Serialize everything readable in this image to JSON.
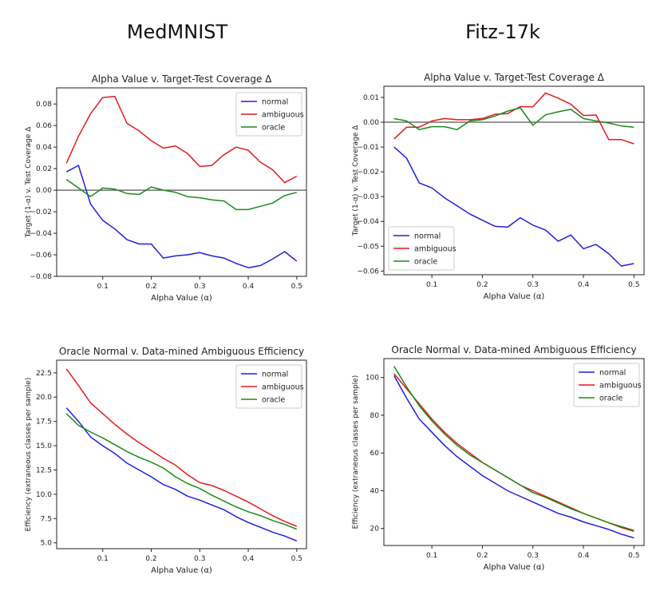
{
  "titles": {
    "left": "MedMNIST",
    "right": "Fitz-17k"
  },
  "colors": {
    "normal": "#1f1fe0",
    "ambiguous": "#e41a1c",
    "oracle": "#1a8a1a",
    "zero_line": "#555555"
  },
  "chart_data": [
    {
      "type": "line",
      "title": "Alpha Value v. Target-Test Coverage Δ",
      "xlabel": "Alpha Value (α)",
      "ylabel": "Target (1-α) v. Test Coverage Δ",
      "xlim": [
        0.005,
        0.52
      ],
      "ylim": [
        -0.08,
        0.095
      ],
      "xticks": [
        0.1,
        0.2,
        0.3,
        0.4,
        0.5
      ],
      "xtick_labels": [
        "0.1",
        "0.2",
        "0.3",
        "0.4",
        "0.5"
      ],
      "yticks": [
        -0.08,
        -0.06,
        -0.04,
        -0.02,
        0.0,
        0.02,
        0.04,
        0.06,
        0.08
      ],
      "ytick_labels": [
        "−0.08",
        "−0.06",
        "−0.04",
        "−0.02",
        "0.00",
        "0.02",
        "0.04",
        "0.06",
        "0.08"
      ],
      "hline": 0,
      "legend": "top-right",
      "x": [
        0.025,
        0.05,
        0.075,
        0.1,
        0.125,
        0.15,
        0.175,
        0.2,
        0.225,
        0.25,
        0.275,
        0.3,
        0.325,
        0.35,
        0.375,
        0.4,
        0.425,
        0.45,
        0.475,
        0.5
      ],
      "series": [
        {
          "name": "normal",
          "key": "normal",
          "values": [
            0.017,
            0.023,
            -0.013,
            -0.028,
            -0.036,
            -0.046,
            -0.05,
            -0.05,
            -0.063,
            -0.061,
            -0.06,
            -0.058,
            -0.061,
            -0.063,
            -0.068,
            -0.072,
            -0.07,
            -0.064,
            -0.057,
            -0.066
          ]
        },
        {
          "name": "ambiguous",
          "key": "ambiguous",
          "values": [
            0.025,
            0.05,
            0.071,
            0.086,
            0.087,
            0.062,
            0.055,
            0.046,
            0.039,
            0.041,
            0.034,
            0.022,
            0.023,
            0.033,
            0.04,
            0.037,
            0.026,
            0.019,
            0.007,
            0.013
          ]
        },
        {
          "name": "oracle",
          "key": "oracle",
          "values": [
            0.01,
            0.002,
            -0.006,
            0.002,
            0.001,
            -0.003,
            -0.004,
            0.003,
            0.0,
            -0.002,
            -0.006,
            -0.007,
            -0.009,
            -0.01,
            -0.018,
            -0.018,
            -0.015,
            -0.012,
            -0.005,
            -0.002
          ]
        }
      ]
    },
    {
      "type": "line",
      "title": "Alpha Value v. Target-Test Coverage Δ",
      "xlabel": "Alpha Value (α)",
      "ylabel": "Target (1-α) v. Test Coverage Δ",
      "xlim": [
        0.005,
        0.52
      ],
      "ylim": [
        -0.0615,
        0.0145
      ],
      "xticks": [
        0.1,
        0.2,
        0.3,
        0.4,
        0.5
      ],
      "xtick_labels": [
        "0.1",
        "0.2",
        "0.3",
        "0.4",
        "0.5"
      ],
      "yticks": [
        -0.06,
        -0.05,
        -0.04,
        -0.03,
        -0.02,
        -0.01,
        0.0,
        0.01
      ],
      "ytick_labels": [
        "−0.06",
        "−0.05",
        "−0.04",
        "−0.03",
        "−0.02",
        "−0.01",
        "0.00",
        "0.01"
      ],
      "hline": 0,
      "legend": "bottom-left",
      "x": [
        0.025,
        0.05,
        0.075,
        0.1,
        0.125,
        0.15,
        0.175,
        0.2,
        0.225,
        0.25,
        0.275,
        0.3,
        0.325,
        0.35,
        0.375,
        0.4,
        0.425,
        0.45,
        0.475,
        0.5
      ],
      "series": [
        {
          "name": "normal",
          "key": "normal",
          "values": [
            -0.01,
            -0.0145,
            -0.0245,
            -0.0265,
            -0.0305,
            -0.0337,
            -0.037,
            -0.0395,
            -0.042,
            -0.0423,
            -0.0385,
            -0.0415,
            -0.0435,
            -0.048,
            -0.0455,
            -0.051,
            -0.0493,
            -0.053,
            -0.058,
            -0.057
          ]
        },
        {
          "name": "ambiguous",
          "key": "ambiguous",
          "values": [
            -0.0068,
            -0.002,
            -0.002,
            0.0005,
            0.0015,
            0.001,
            0.001,
            0.0015,
            0.0032,
            0.0035,
            0.0063,
            0.0062,
            0.0118,
            0.0097,
            0.0073,
            0.0027,
            0.0029,
            -0.007,
            -0.007,
            -0.0087
          ]
        },
        {
          "name": "oracle",
          "key": "oracle",
          "values": [
            0.0015,
            0.0005,
            -0.003,
            -0.0018,
            -0.0018,
            -0.003,
            0.0005,
            0.001,
            0.0025,
            0.0045,
            0.0058,
            -0.0012,
            0.003,
            0.0042,
            0.0052,
            0.0015,
            0.0005,
            -0.0003,
            -0.0015,
            -0.002
          ]
        }
      ]
    },
    {
      "type": "line",
      "title": "Oracle Normal v. Data-mined Ambiguous Efficiency",
      "xlabel": "Alpha Value (α)",
      "ylabel": "Efficiency (extraneous classes per sample)",
      "xlim": [
        0.005,
        0.52
      ],
      "ylim": [
        4.4,
        23.8
      ],
      "xticks": [
        0.1,
        0.2,
        0.3,
        0.4,
        0.5
      ],
      "xtick_labels": [
        "0.1",
        "0.2",
        "0.3",
        "0.4",
        "0.5"
      ],
      "yticks": [
        5.0,
        7.5,
        10.0,
        12.5,
        15.0,
        17.5,
        20.0,
        22.5
      ],
      "ytick_labels": [
        "5.0",
        "7.5",
        "10.0",
        "12.5",
        "15.0",
        "17.5",
        "20.0",
        "22.5"
      ],
      "legend": "top-right",
      "x": [
        0.025,
        0.05,
        0.075,
        0.1,
        0.125,
        0.15,
        0.175,
        0.2,
        0.225,
        0.25,
        0.275,
        0.3,
        0.325,
        0.35,
        0.375,
        0.4,
        0.425,
        0.45,
        0.475,
        0.5
      ],
      "series": [
        {
          "name": "normal",
          "key": "normal",
          "values": [
            18.9,
            17.5,
            15.9,
            15.0,
            14.2,
            13.2,
            12.5,
            11.8,
            11.0,
            10.5,
            9.8,
            9.4,
            8.9,
            8.4,
            7.7,
            7.1,
            6.6,
            6.1,
            5.7,
            5.2
          ]
        },
        {
          "name": "ambiguous",
          "key": "ambiguous",
          "values": [
            22.9,
            21.2,
            19.4,
            18.3,
            17.2,
            16.2,
            15.3,
            14.5,
            13.7,
            13.0,
            12.0,
            11.2,
            10.9,
            10.4,
            9.8,
            9.2,
            8.5,
            7.8,
            7.2,
            6.7
          ]
        },
        {
          "name": "oracle",
          "key": "oracle",
          "values": [
            18.3,
            17.1,
            16.4,
            15.8,
            15.1,
            14.4,
            13.8,
            13.3,
            12.7,
            11.8,
            11.1,
            10.6,
            9.9,
            9.3,
            8.7,
            8.2,
            7.8,
            7.3,
            6.9,
            6.4
          ]
        }
      ]
    },
    {
      "type": "line",
      "title": "Oracle Normal v. Data-mined Ambiguous Efficiency",
      "xlabel": "Alpha Value (α)",
      "ylabel": "Efficiency (extraneous classes per sample)",
      "xlim": [
        0.005,
        0.52
      ],
      "ylim": [
        11,
        110
      ],
      "xticks": [
        0.1,
        0.2,
        0.3,
        0.4,
        0.5
      ],
      "xtick_labels": [
        "0.1",
        "0.2",
        "0.3",
        "0.4",
        "0.5"
      ],
      "yticks": [
        20,
        40,
        60,
        80,
        100
      ],
      "ytick_labels": [
        "20",
        "40",
        "60",
        "80",
        "100"
      ],
      "legend": "top-right",
      "x": [
        0.025,
        0.05,
        0.075,
        0.1,
        0.125,
        0.15,
        0.175,
        0.2,
        0.225,
        0.25,
        0.275,
        0.3,
        0.325,
        0.35,
        0.375,
        0.4,
        0.425,
        0.45,
        0.475,
        0.5
      ],
      "series": [
        {
          "name": "normal",
          "key": "normal",
          "values": [
            101,
            89,
            78,
            71,
            64,
            58,
            53,
            48,
            44,
            40,
            37,
            34,
            31,
            28,
            26,
            23.5,
            21.5,
            19.5,
            17,
            15
          ]
        },
        {
          "name": "ambiguous",
          "key": "ambiguous",
          "values": [
            102,
            94,
            86,
            78,
            71,
            65,
            60,
            55,
            51,
            47,
            43,
            40,
            37,
            34,
            31,
            28,
            25.5,
            23,
            20.5,
            18.5
          ]
        },
        {
          "name": "oracle",
          "key": "oracle",
          "values": [
            106,
            95,
            85,
            77,
            70,
            64,
            59,
            55,
            51,
            47,
            43,
            39,
            36.5,
            33.5,
            30.5,
            28,
            25.5,
            23,
            21,
            19
          ]
        }
      ]
    }
  ]
}
